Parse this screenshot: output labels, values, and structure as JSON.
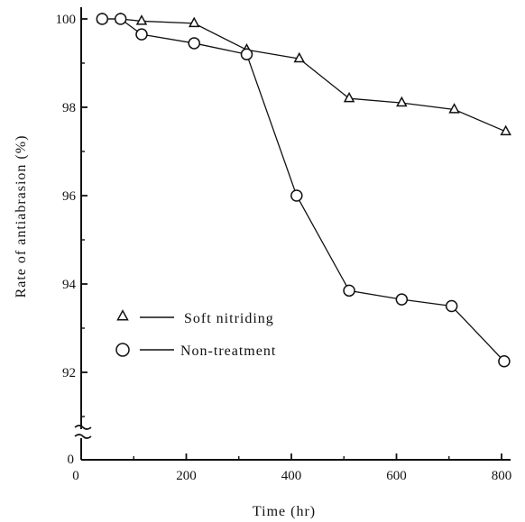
{
  "chart_data": {
    "type": "line",
    "xlabel": "Time (hr)",
    "ylabel": "Rate of antiabrasion (%)",
    "xlim": [
      0,
      820
    ],
    "ylim": [
      91,
      100.5
    ],
    "y_axis_break": true,
    "y_zero_label": "0",
    "xticks": [
      0,
      200,
      400,
      600,
      800
    ],
    "xtick_labels": [
      "0",
      "200",
      "400",
      "600",
      "800"
    ],
    "yticks": [
      92,
      94,
      96,
      98,
      100
    ],
    "ytick_labels": [
      "92",
      "94",
      "96",
      "98",
      "100"
    ],
    "grid": false,
    "legend_position": "lower-left",
    "series": [
      {
        "name": "Soft nitriding",
        "marker": "triangle",
        "x": [
          40,
          75,
          115,
          215,
          315,
          415,
          510,
          610,
          710,
          808
        ],
        "y": [
          100.0,
          100.0,
          99.95,
          99.9,
          99.3,
          99.1,
          98.2,
          98.1,
          97.95,
          97.45
        ]
      },
      {
        "name": "Non-treatment",
        "marker": "circle",
        "x": [
          40,
          75,
          115,
          215,
          315,
          410,
          510,
          610,
          705,
          805
        ],
        "y": [
          100.0,
          100.0,
          99.65,
          99.45,
          99.2,
          96.0,
          93.85,
          93.65,
          93.5,
          92.25
        ]
      }
    ]
  }
}
